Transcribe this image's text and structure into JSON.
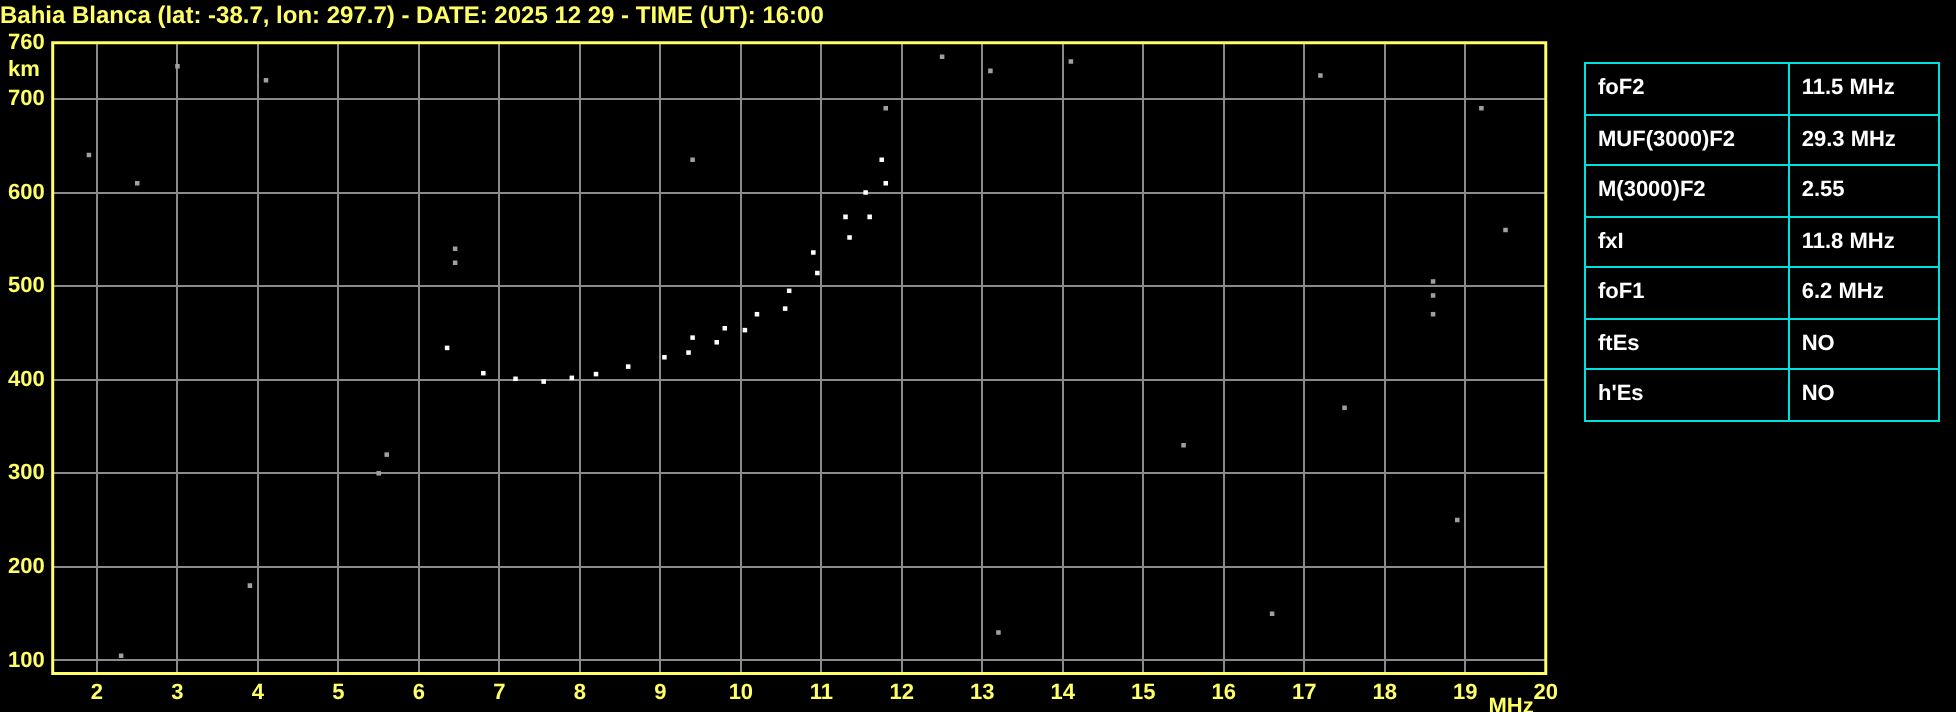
{
  "chart_data": [
    {
      "type": "scatter",
      "title": "Bahia Blanca (lat: -38.7, lon: 297.7) - DATE: 2025 12 29 - TIME (UT): 16:00",
      "xlabel": "MHz",
      "ylabel": "km",
      "xlim": [
        1.45,
        20
      ],
      "ylim": [
        86,
        760
      ],
      "xticks": [
        2,
        3,
        4,
        5,
        6,
        7,
        8,
        9,
        10,
        11,
        12,
        13,
        14,
        15,
        16,
        17,
        18,
        19,
        20
      ],
      "yticks": [
        100,
        200,
        300,
        400,
        500,
        600,
        700,
        760
      ],
      "grid": true,
      "legend": false,
      "marker": "square",
      "series": [
        {
          "color": "#ffffff",
          "x": [
            6.35,
            6.8,
            7.2,
            7.55,
            7.9,
            8.2,
            8.6,
            9.05,
            9.35,
            9.7,
            10.05,
            10.55,
            10.95,
            11.35,
            11.6,
            11.8
          ],
          "values": [
            434,
            407,
            401,
            398,
            402,
            406,
            414,
            424,
            429,
            440,
            453,
            476,
            514,
            552,
            574,
            610
          ]
        },
        {
          "color": "#ffffff",
          "x": [
            9.4,
            9.8,
            10.2,
            10.6,
            10.9,
            11.3,
            11.55,
            11.75
          ],
          "values": [
            445,
            455,
            470,
            495,
            536,
            574,
            600,
            635
          ]
        },
        {
          "color": "#a0a0a0",
          "x": [
            3.0,
            4.1,
            1.9,
            2.5,
            5.6,
            5.5,
            6.45,
            6.45,
            12.5,
            13.1,
            14.1,
            17.2,
            19.2,
            19.5,
            18.9,
            16.6,
            13.2,
            3.9,
            2.3,
            15.5,
            17.5,
            9.4,
            11.8,
            18.6,
            18.6,
            18.6
          ],
          "values": [
            735,
            720,
            640,
            610,
            320,
            300,
            525,
            540,
            745,
            730,
            740,
            725,
            690,
            560,
            250,
            150,
            130,
            180,
            105,
            330,
            370,
            635,
            690,
            470,
            490,
            505
          ]
        }
      ]
    },
    {
      "type": "other",
      "categories": [
        "foF2",
        "MUF(3000)F2",
        "M(3000)F2",
        "fxI",
        "foF1",
        "ftEs",
        "h'Es"
      ],
      "value_labels": [
        "11.5 MHz",
        "29.3 MHz",
        "2.55",
        "11.8 MHz",
        "6.2 MHz",
        "NO",
        "NO"
      ]
    }
  ]
}
